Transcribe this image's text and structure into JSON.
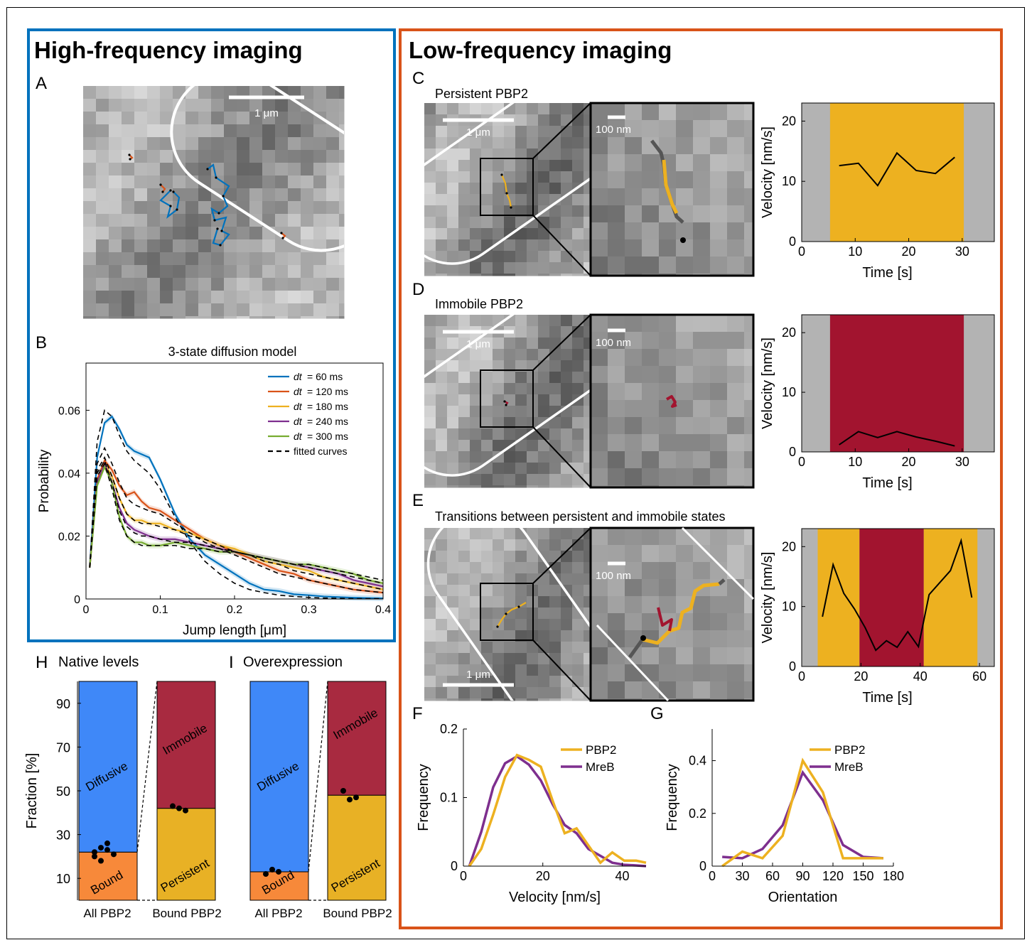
{
  "colors": {
    "blue_box": "#0072BD",
    "orange_box": "#D95319",
    "dt60": "#0072BD",
    "dt120": "#D95319",
    "dt180": "#EDB120",
    "dt240": "#7E2F8E",
    "dt300": "#77AC30",
    "persistent": "#EDB120",
    "immobile": "#A2142F",
    "gray_band": "#B3B3B3",
    "diffusive": "#3F88F8",
    "bound": "#F7893A",
    "immobile_bar": "#A82A40",
    "persistent_bar": "#E8B125",
    "pbp2_line": "#EDB120",
    "mreb_line": "#7E2F8E"
  },
  "sections": {
    "high_title": "High-frequency imaging",
    "low_title": "Low-frequency imaging"
  },
  "panel_letters": {
    "A": "A",
    "B": "B",
    "C": "C",
    "D": "D",
    "E": "E",
    "F": "F",
    "G": "G",
    "H": "H",
    "I": "I"
  },
  "panel_a": {
    "scalebar": "1 μm"
  },
  "panel_b": {
    "title": "3-state diffusion model",
    "xlabel": "Jump length [μm]",
    "ylabel": "Probability",
    "legend_prefix": "dt",
    "legend": [
      "= 60 ms",
      "= 120 ms",
      "= 180 ms",
      "= 240 ms",
      "= 300 ms",
      "fitted curves"
    ]
  },
  "panel_c": {
    "title": "Persistent PBP2",
    "scale_big": "1 μm",
    "scale_zoom": "100 nm"
  },
  "panel_d": {
    "title": "Immobile PBP2",
    "scale_big": "1 μm",
    "scale_zoom": "100 nm"
  },
  "panel_e": {
    "title": "Transitions between persistent and immobile states",
    "scale_big": "1 μm",
    "scale_zoom": "100 nm"
  },
  "velocity_axes": {
    "ylabel": "Velocity [nm/s]",
    "xlabel": "Time [s]"
  },
  "panel_f": {
    "xlabel": "Velocity [nm/s]",
    "ylabel": "Frequency",
    "legend": [
      "PBP2",
      "MreB"
    ]
  },
  "panel_g": {
    "xlabel": "Orientation",
    "ylabel": "Frequency",
    "legend": [
      "PBP2",
      "MreB"
    ]
  },
  "panel_h": {
    "title": "Native levels",
    "ylabel": "Fraction [%]",
    "cat1": "All PBP2",
    "cat2": "Bound PBP2",
    "label_diffusive": "Diffusive",
    "label_bound": "Bound",
    "label_immobile": "Immobile",
    "label_persistent": "Persistent"
  },
  "panel_i": {
    "title": "Overexpression",
    "cat1": "All PBP2",
    "cat2": "Bound PBP2",
    "label_diffusive": "Diffusive",
    "label_bound": "Bound",
    "label_immobile": "Immobile",
    "label_persistent": "Persistent"
  },
  "chart_data": [
    {
      "id": "B",
      "type": "line",
      "title": "3-state diffusion model",
      "xlabel": "Jump length [μm]",
      "ylabel": "Probability",
      "xlim": [
        0,
        0.4
      ],
      "ylim": [
        0,
        0.075
      ],
      "xticks": [
        0,
        0.1,
        0.2,
        0.3,
        0.4
      ],
      "yticks": [
        0,
        0.02,
        0.04,
        0.06
      ],
      "x": [
        0.005,
        0.015,
        0.025,
        0.035,
        0.045,
        0.055,
        0.065,
        0.075,
        0.085,
        0.1,
        0.12,
        0.14,
        0.16,
        0.18,
        0.2,
        0.22,
        0.24,
        0.26,
        0.28,
        0.3,
        0.32,
        0.34,
        0.36,
        0.38,
        0.4
      ],
      "series": [
        {
          "name": "dt = 60 ms",
          "values": [
            0.01,
            0.045,
            0.056,
            0.058,
            0.054,
            0.049,
            0.047,
            0.046,
            0.045,
            0.038,
            0.027,
            0.019,
            0.014,
            0.011,
            0.008,
            0.005,
            0.003,
            0.0025,
            0.0015,
            0.0012,
            0.0008,
            0.0006,
            0.0004,
            0.0003,
            0.0002
          ]
        },
        {
          "name": "dt = 120 ms",
          "values": [
            0.01,
            0.038,
            0.044,
            0.041,
            0.036,
            0.033,
            0.034,
            0.031,
            0.029,
            0.028,
            0.025,
            0.022,
            0.019,
            0.017,
            0.015,
            0.013,
            0.011,
            0.009,
            0.008,
            0.006,
            0.005,
            0.004,
            0.003,
            0.0025,
            0.002
          ]
        },
        {
          "name": "dt = 180 ms",
          "values": [
            0.01,
            0.037,
            0.043,
            0.039,
            0.032,
            0.027,
            0.025,
            0.025,
            0.024,
            0.024,
            0.022,
            0.021,
            0.019,
            0.017,
            0.016,
            0.014,
            0.012,
            0.011,
            0.01,
            0.009,
            0.007,
            0.006,
            0.005,
            0.004,
            0.003
          ]
        },
        {
          "name": "dt = 240 ms",
          "values": [
            0.01,
            0.037,
            0.043,
            0.037,
            0.029,
            0.024,
            0.022,
            0.021,
            0.02,
            0.019,
            0.019,
            0.018,
            0.017,
            0.016,
            0.015,
            0.014,
            0.013,
            0.012,
            0.011,
            0.01,
            0.009,
            0.008,
            0.006,
            0.005,
            0.004
          ]
        },
        {
          "name": "dt = 300 ms",
          "values": [
            0.01,
            0.036,
            0.042,
            0.037,
            0.026,
            0.02,
            0.018,
            0.018,
            0.017,
            0.017,
            0.018,
            0.017,
            0.016,
            0.015,
            0.015,
            0.014,
            0.013,
            0.012,
            0.011,
            0.011,
            0.01,
            0.009,
            0.008,
            0.006,
            0.005
          ]
        }
      ],
      "fits": [
        [
          0.01,
          0.05,
          0.06,
          0.058,
          0.052,
          0.047,
          0.044,
          0.042,
          0.04,
          0.035,
          0.026,
          0.018,
          0.012,
          0.008,
          0.005,
          0.003,
          0.002,
          0.0012,
          0.0008,
          0.0005,
          0.0003,
          0.0002,
          0.0001,
          0.0001,
          0.0001
        ],
        [
          0.01,
          0.043,
          0.048,
          0.043,
          0.037,
          0.032,
          0.03,
          0.029,
          0.028,
          0.027,
          0.024,
          0.021,
          0.018,
          0.016,
          0.014,
          0.012,
          0.01,
          0.008,
          0.007,
          0.006,
          0.005,
          0.004,
          0.003,
          0.0025,
          0.002
        ],
        [
          0.01,
          0.041,
          0.045,
          0.039,
          0.032,
          0.027,
          0.025,
          0.024,
          0.024,
          0.023,
          0.022,
          0.02,
          0.019,
          0.017,
          0.015,
          0.014,
          0.012,
          0.011,
          0.009,
          0.008,
          0.007,
          0.006,
          0.005,
          0.004,
          0.003
        ],
        [
          0.01,
          0.04,
          0.044,
          0.037,
          0.028,
          0.023,
          0.021,
          0.02,
          0.02,
          0.019,
          0.018,
          0.018,
          0.017,
          0.016,
          0.015,
          0.014,
          0.013,
          0.012,
          0.011,
          0.01,
          0.009,
          0.008,
          0.007,
          0.006,
          0.005
        ],
        [
          0.01,
          0.039,
          0.043,
          0.035,
          0.025,
          0.02,
          0.018,
          0.017,
          0.017,
          0.017,
          0.017,
          0.016,
          0.016,
          0.015,
          0.015,
          0.014,
          0.013,
          0.012,
          0.011,
          0.011,
          0.01,
          0.009,
          0.008,
          0.007,
          0.006
        ]
      ]
    },
    {
      "id": "C",
      "type": "line",
      "xlabel": "Time [s]",
      "ylabel": "Velocity [nm/s]",
      "xlim": [
        0,
        36
      ],
      "ylim": [
        0,
        23
      ],
      "xticks": [
        0,
        10,
        20,
        30
      ],
      "yticks": [
        0,
        10,
        20
      ],
      "bands": [
        {
          "from": 5.3,
          "to": 30.3,
          "state": "persistent"
        }
      ],
      "x": [
        7,
        10.6,
        14.2,
        17.8,
        21.4,
        25,
        28.6
      ],
      "values": [
        12.6,
        13,
        9.3,
        14.7,
        11.8,
        11.3,
        14
      ]
    },
    {
      "id": "D",
      "type": "line",
      "xlabel": "Time [s]",
      "ylabel": "Velocity [nm/s]",
      "xlim": [
        0,
        36
      ],
      "ylim": [
        0,
        23
      ],
      "xticks": [
        0,
        10,
        20,
        30
      ],
      "yticks": [
        0,
        10,
        20
      ],
      "bands": [
        {
          "from": 5.3,
          "to": 30.3,
          "state": "immobile"
        }
      ],
      "x": [
        7,
        10.6,
        14.2,
        17.8,
        21.4,
        25,
        28.6
      ],
      "values": [
        1.2,
        3.4,
        2.4,
        3.4,
        2.5,
        1.8,
        1.0
      ]
    },
    {
      "id": "E",
      "type": "line",
      "xlabel": "Time [s]",
      "ylabel": "Velocity [nm/s]",
      "xlim": [
        0,
        65
      ],
      "ylim": [
        0,
        23
      ],
      "xticks": [
        0,
        20,
        40,
        60
      ],
      "yticks": [
        0,
        10,
        20
      ],
      "bands": [
        {
          "from": 5.4,
          "to": 19.5,
          "state": "persistent"
        },
        {
          "from": 19.5,
          "to": 41.2,
          "state": "immobile"
        },
        {
          "from": 41.2,
          "to": 59.3,
          "state": "persistent"
        }
      ],
      "x": [
        7,
        10.6,
        14.2,
        17.8,
        21.4,
        25,
        28.6,
        32.2,
        35.8,
        39.4,
        43,
        46.6,
        50.2,
        53.8,
        57.4
      ],
      "values": [
        8.3,
        17,
        12.2,
        9.6,
        6.5,
        2.7,
        4.3,
        3.2,
        5.8,
        3.3,
        12,
        14,
        16,
        21,
        11.5
      ]
    },
    {
      "id": "F",
      "type": "line",
      "xlabel": "Velocity [nm/s]",
      "ylabel": "Frequency",
      "xlim": [
        0,
        46
      ],
      "ylim": [
        0,
        0.2
      ],
      "xticks": [
        0,
        20,
        40
      ],
      "yticks": [
        0,
        0.1,
        0.2
      ],
      "x": [
        1.5,
        4.5,
        7.5,
        10.5,
        13.5,
        16.5,
        19.5,
        22.5,
        25.5,
        28.5,
        31.5,
        34.5,
        37.5,
        40.5,
        43.5,
        46
      ],
      "series": [
        {
          "name": "PBP2",
          "values": [
            0,
            0.025,
            0.075,
            0.13,
            0.162,
            0.155,
            0.145,
            0.095,
            0.048,
            0.055,
            0.03,
            0.005,
            0.02,
            0.008,
            0.008,
            0.005
          ]
        },
        {
          "name": "MreB",
          "values": [
            0,
            0.05,
            0.115,
            0.15,
            0.16,
            0.148,
            0.125,
            0.09,
            0.06,
            0.048,
            0.025,
            0.015,
            0.005,
            0.002,
            0.001,
            0
          ]
        }
      ]
    },
    {
      "id": "G",
      "type": "line",
      "xlabel": "Orientation",
      "ylabel": "Frequency",
      "xlim": [
        0,
        180
      ],
      "ylim": [
        0,
        0.52
      ],
      "xticks": [
        0,
        30,
        60,
        90,
        120,
        150,
        180
      ],
      "yticks": [
        0,
        0.2,
        0.4
      ],
      "x": [
        10,
        30,
        50,
        70,
        90,
        110,
        130,
        150,
        170
      ],
      "series": [
        {
          "name": "PBP2",
          "values": [
            0,
            0.055,
            0.03,
            0.115,
            0.4,
            0.28,
            0.03,
            0.03,
            0.03
          ]
        },
        {
          "name": "MreB",
          "values": [
            0.035,
            0.03,
            0.065,
            0.155,
            0.355,
            0.25,
            0.08,
            0.035,
            0.03
          ]
        }
      ]
    },
    {
      "id": "H",
      "type": "bar",
      "ylabel": "Fraction [%]",
      "ylim": [
        0,
        100
      ],
      "yticks": [
        10,
        30,
        50,
        70,
        90
      ],
      "categories": [
        "All PBP2",
        "Bound PBP2"
      ],
      "stacks": [
        [
          {
            "label": "Bound",
            "value": 22
          },
          {
            "label": "Diffusive",
            "value": 78
          }
        ],
        [
          {
            "label": "Persistent",
            "value": 42
          },
          {
            "label": "Immobile",
            "value": 58
          }
        ]
      ],
      "points": [
        [
          22,
          24,
          23,
          21,
          20,
          18,
          26
        ],
        [
          43,
          42,
          41
        ]
      ]
    },
    {
      "id": "I",
      "type": "bar",
      "ylim": [
        0,
        100
      ],
      "categories": [
        "All PBP2",
        "Bound PBP2"
      ],
      "stacks": [
        [
          {
            "label": "Bound",
            "value": 13
          },
          {
            "label": "Diffusive",
            "value": 87
          }
        ],
        [
          {
            "label": "Persistent",
            "value": 48
          },
          {
            "label": "Immobile",
            "value": 52
          }
        ]
      ],
      "points": [
        [
          12,
          14,
          13
        ],
        [
          50,
          46,
          47
        ]
      ]
    }
  ]
}
